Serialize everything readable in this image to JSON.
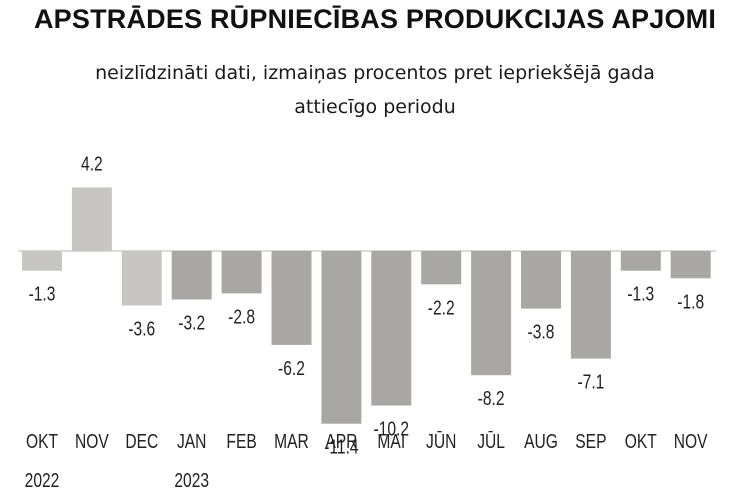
{
  "chart_data": {
    "type": "bar",
    "title": "APSTRĀDES RŪPNIECĪBAS PRODUKCIJAS APJOMI",
    "subtitle_lines": [
      "neizlīdzināti dati, izmaiņas procentos pret iepriekšējā gada",
      "attiecīgo periodu"
    ],
    "categories": [
      "OKT",
      "NOV",
      "DEC",
      "JAN",
      "FEB",
      "MAR",
      "APR",
      "MAI",
      "JŪN",
      "JŪL",
      "AUG",
      "SEP",
      "OKT",
      "NOV"
    ],
    "year_labels": [
      "2022",
      "",
      "",
      "2023",
      "",
      "",
      "",
      "",
      "",
      "",
      "",
      "",
      "",
      ""
    ],
    "values": [
      -1.3,
      4.2,
      -3.6,
      -3.2,
      -2.8,
      -6.2,
      -11.4,
      -10.2,
      -2.2,
      -8.2,
      -3.8,
      -7.1,
      -1.3,
      -1.8
    ],
    "value_labels": [
      "-1.3",
      "4.2",
      "-3.6",
      "-3.2",
      "-2.8",
      "-6.2",
      "-11.4",
      "-10.2",
      "-2.2",
      "-8.2",
      "-3.8",
      "-7.1",
      "-1.3",
      "-1.8"
    ],
    "xlabel": "",
    "ylabel": "",
    "ylim": [
      -11.4,
      4.2
    ],
    "grid": false,
    "legend": "none",
    "colors": {
      "first_bars": "#c8c6c3",
      "other_bars": "#a9a7a4",
      "zero_line": "#b8b6b3",
      "label_text": "#222222"
    }
  }
}
